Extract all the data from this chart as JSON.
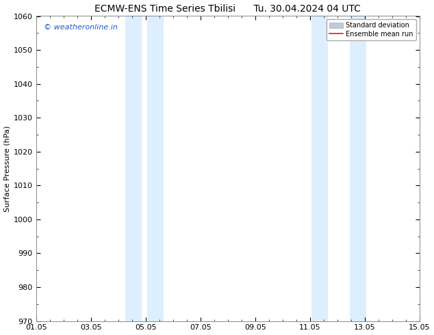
{
  "title_left": "ECMW-ENS Time Series Tbilisi",
  "title_right": "Tu. 30.04.2024 04 UTC",
  "ylabel": "Surface Pressure (hPa)",
  "ylim": [
    970,
    1060
  ],
  "yticks": [
    970,
    980,
    990,
    1000,
    1010,
    1020,
    1030,
    1040,
    1050,
    1060
  ],
  "date_start": "2024-05-01",
  "date_end": "2024-05-15",
  "xtick_labels": [
    "01.05",
    "03.05",
    "05.05",
    "07.05",
    "09.05",
    "11.05",
    "13.05",
    "15.05"
  ],
  "xtick_days": [
    1,
    3,
    5,
    7,
    9,
    11,
    13,
    15
  ],
  "shaded_regions": [
    {
      "day_start": 4.0,
      "day_end": 4.5
    },
    {
      "day_start": 5.0,
      "day_end": 5.5
    },
    {
      "day_start": 11.0,
      "day_end": 11.5
    },
    {
      "day_start": 12.5,
      "day_end": 13.0
    }
  ],
  "shade_color": "#ddeeff",
  "watermark_text": "© weatheronline.in",
  "watermark_color": "#2255cc",
  "legend_items": [
    {
      "label": "Standard deviation",
      "color": "#bbccdd",
      "type": "patch"
    },
    {
      "label": "Ensemble mean run",
      "color": "#dd2200",
      "type": "line"
    }
  ],
  "background_color": "#ffffff",
  "title_fontsize": 10,
  "ylabel_fontsize": 8,
  "tick_fontsize": 8,
  "watermark_fontsize": 8
}
